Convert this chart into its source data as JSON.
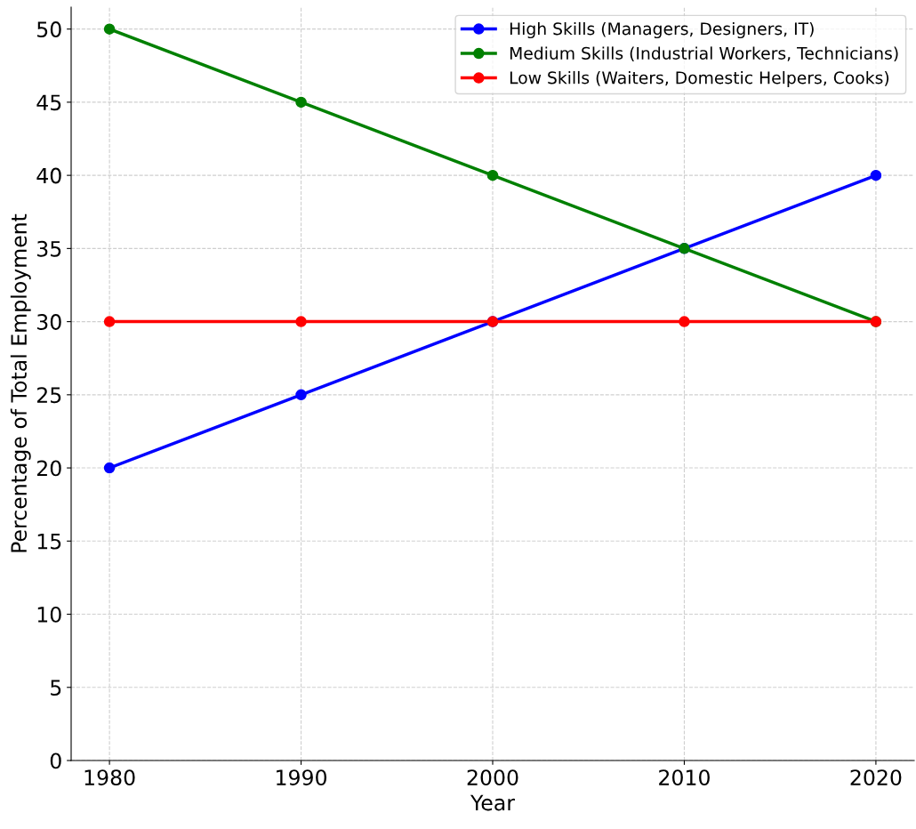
{
  "chart_data": {
    "type": "line",
    "xlabel": "Year",
    "ylabel": "Percentage of Total Employment",
    "x": [
      1980,
      1990,
      2000,
      2010,
      2020
    ],
    "series": [
      {
        "name": "High Skills (Managers, Designers, IT)",
        "color": "#0000ff",
        "values": [
          20,
          25,
          30,
          35,
          40
        ]
      },
      {
        "name": "Medium Skills (Industrial Workers, Technicians)",
        "color": "#008000",
        "values": [
          50,
          45,
          40,
          35,
          30
        ]
      },
      {
        "name": "Low Skills (Waiters, Domestic Helpers, Cooks)",
        "color": "#ff0000",
        "values": [
          30,
          30,
          30,
          30,
          30
        ]
      }
    ],
    "xlim": [
      1978,
      2022
    ],
    "ylim": [
      0,
      51.5
    ],
    "xticks": [
      1980,
      1990,
      2000,
      2010,
      2020
    ],
    "yticks": [
      0,
      5,
      10,
      15,
      20,
      25,
      30,
      35,
      40,
      45,
      50
    ],
    "grid": true,
    "legend": "top right",
    "marker": "circle",
    "line_style": "solid"
  }
}
